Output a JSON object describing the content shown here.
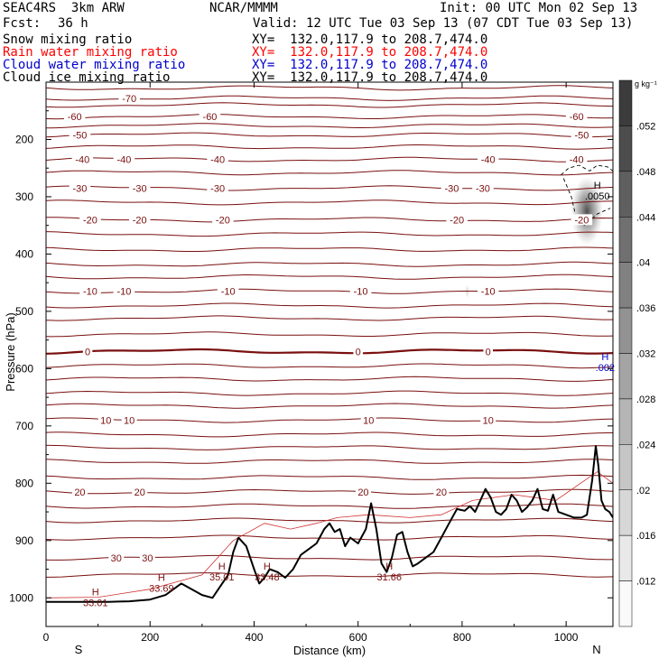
{
  "header": {
    "model": "SEAC4RS  3km ARW",
    "institution": "NCAR/MMMM",
    "init": "Init: 00 UTC Mon 02 Sep 13",
    "fcst_label": "Fcst:",
    "fcst_value": "36 h",
    "valid": "Valid: 12 UTC Tue 03 Sep 13 (07 CDT Tue 03 Sep 13)",
    "fields": [
      {
        "name": "Snow mixing ratio",
        "xy": "XY=  132.0,117.9 to 208.7,474.0",
        "color": "#000000"
      },
      {
        "name": "Rain water mixing ratio",
        "xy": "XY=  132.0,117.9 to 208.7,474.0",
        "color": "#ff0000"
      },
      {
        "name": "Cloud water mixing ratio",
        "xy": "XY=  132.0,117.9 to 208.7,474.0",
        "color": "#0000cc"
      },
      {
        "name": "Cloud ice mixing ratio",
        "xy": "XY=  132.0,117.9 to 208.7,474.0",
        "color": "#000000"
      }
    ]
  },
  "chart_data": {
    "type": "contour",
    "xlabel": "Distance (km)",
    "ylabel": "Pressure (hPa)",
    "xlim": [
      0,
      1090
    ],
    "ylim": [
      1050,
      100
    ],
    "x_ticks": [
      0,
      200,
      400,
      600,
      800,
      1000
    ],
    "y_ticks": [
      200,
      300,
      400,
      500,
      600,
      700,
      800,
      900,
      1000
    ],
    "end_labels": {
      "left": "S",
      "right": "N"
    },
    "colorbar": {
      "unit": "g kg⁻¹",
      "ticks": [
        ".052",
        ".048",
        ".044",
        ".04",
        ".036",
        ".032",
        ".028",
        ".024",
        ".02",
        ".016",
        ".012"
      ]
    },
    "temperature_contours": [
      {
        "value": -70,
        "p": 128,
        "labels": [
          {
            "x": 160,
            "text": "-70"
          }
        ]
      },
      {
        "value": -60,
        "p": 160,
        "labels": [
          {
            "x": 55,
            "text": "-60"
          },
          {
            "x": 315,
            "text": "-60"
          },
          {
            "x": 1020,
            "text": "-60"
          }
        ]
      },
      {
        "value": -50,
        "p": 192,
        "labels": [
          {
            "x": 65,
            "text": "-50"
          },
          {
            "x": 1030,
            "text": "-50"
          }
        ]
      },
      {
        "value": -40,
        "p": 235,
        "labels": [
          {
            "x": 70,
            "text": "-40"
          },
          {
            "x": 150,
            "text": "-40"
          },
          {
            "x": 330,
            "text": "-40"
          },
          {
            "x": 850,
            "text": "-40"
          },
          {
            "x": 1020,
            "text": "-40"
          }
        ]
      },
      {
        "value": -30,
        "p": 285,
        "labels": [
          {
            "x": 65,
            "text": "-30"
          },
          {
            "x": 180,
            "text": "-30"
          },
          {
            "x": 330,
            "text": "-30"
          },
          {
            "x": 780,
            "text": "-30"
          },
          {
            "x": 840,
            "text": "-30"
          }
        ]
      },
      {
        "value": -20,
        "p": 340,
        "labels": [
          {
            "x": 85,
            "text": "-20"
          },
          {
            "x": 180,
            "text": "-20"
          },
          {
            "x": 340,
            "text": "-20"
          },
          {
            "x": 790,
            "text": "-20"
          },
          {
            "x": 1030,
            "text": "-20"
          }
        ]
      },
      {
        "value": -10,
        "p": 465,
        "labels": [
          {
            "x": 85,
            "text": "-10"
          },
          {
            "x": 150,
            "text": "-10"
          },
          {
            "x": 350,
            "text": "-10"
          },
          {
            "x": 605,
            "text": "-10"
          },
          {
            "x": 850,
            "text": "-10"
          }
        ]
      },
      {
        "value": 0,
        "p": 570,
        "labels": [
          {
            "x": 80,
            "text": "0"
          },
          {
            "x": 600,
            "text": "0"
          },
          {
            "x": 850,
            "text": "0"
          }
        ]
      },
      {
        "value": 10,
        "p": 690,
        "labels": [
          {
            "x": 115,
            "text": "10"
          },
          {
            "x": 160,
            "text": "10"
          },
          {
            "x": 620,
            "text": "10"
          },
          {
            "x": 850,
            "text": "10"
          }
        ]
      },
      {
        "value": 20,
        "p": 815,
        "labels": [
          {
            "x": 65,
            "text": "20"
          },
          {
            "x": 180,
            "text": "20"
          },
          {
            "x": 610,
            "text": "20"
          },
          {
            "x": 760,
            "text": "20"
          }
        ]
      },
      {
        "value": 30,
        "p": 930,
        "labels": [
          {
            "x": 135,
            "text": "30"
          },
          {
            "x": 195,
            "text": "30"
          }
        ]
      }
    ],
    "pressure_maxima": [
      {
        "x": 95,
        "p": 1005,
        "mark": "H",
        "value": "33.01"
      },
      {
        "x": 222,
        "p": 980,
        "mark": "H",
        "value": "33.69"
      },
      {
        "x": 338,
        "p": 960,
        "mark": "H",
        "value": "35.01"
      },
      {
        "x": 425,
        "p": 960,
        "mark": "H",
        "value": "33.48"
      },
      {
        "x": 660,
        "p": 960,
        "mark": "H",
        "value": "31.66"
      },
      {
        "x": 1060,
        "p": 295,
        "mark": "H",
        "value": ".0050"
      },
      {
        "x": 1075,
        "p": 595,
        "mark": "H",
        "value": ".002"
      }
    ],
    "terrain": {
      "x": [
        0,
        40,
        80,
        120,
        160,
        200,
        230,
        245,
        260,
        280,
        300,
        320,
        335,
        350,
        360,
        370,
        385,
        400,
        410,
        420,
        430,
        445,
        460,
        475,
        490,
        505,
        520,
        535,
        545,
        555,
        565,
        575,
        585,
        600,
        615,
        625,
        635,
        645,
        655,
        665,
        675,
        685,
        695,
        705,
        715,
        730,
        745,
        760,
        775,
        790,
        805,
        815,
        825,
        835,
        845,
        855,
        865,
        875,
        885,
        895,
        905,
        915,
        925,
        935,
        945,
        955,
        965,
        975,
        985,
        1000,
        1015,
        1030,
        1040,
        1050,
        1057,
        1062,
        1068,
        1075,
        1083,
        1090
      ],
      "p": [
        1007,
        1007,
        1007,
        1007,
        1006,
        1003,
        995,
        985,
        975,
        985,
        995,
        1000,
        980,
        960,
        920,
        895,
        910,
        950,
        975,
        965,
        950,
        955,
        965,
        950,
        925,
        915,
        905,
        880,
        870,
        885,
        880,
        910,
        895,
        905,
        880,
        835,
        880,
        940,
        955,
        930,
        890,
        885,
        920,
        945,
        940,
        930,
        920,
        895,
        870,
        845,
        848,
        840,
        850,
        830,
        810,
        825,
        850,
        855,
        845,
        820,
        830,
        850,
        842,
        830,
        810,
        845,
        848,
        820,
        850,
        855,
        860,
        860,
        855,
        795,
        735,
        770,
        830,
        845,
        850,
        860
      ]
    }
  }
}
